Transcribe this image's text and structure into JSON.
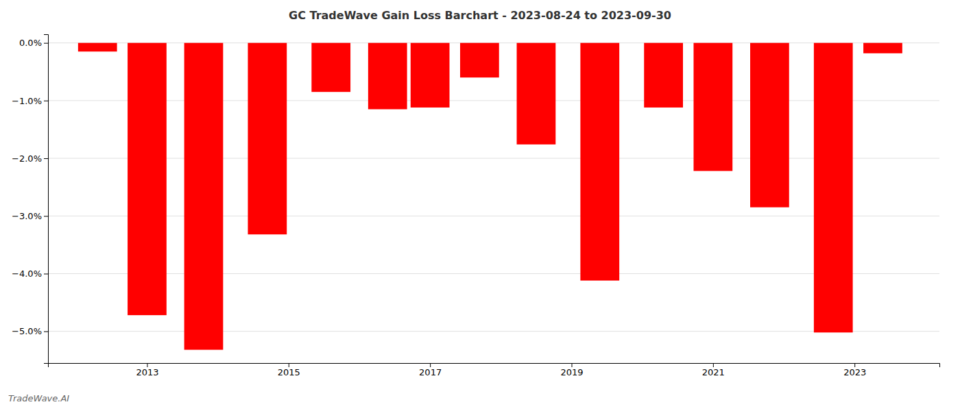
{
  "chart_data": {
    "type": "bar",
    "title": "GC TradeWave Gain Loss Barchart - 2023-08-24 to 2023-09-30",
    "annotations": [
      "TradeWave.AI"
    ],
    "x": [
      2012.3,
      2013.0,
      2013.8,
      2014.7,
      2015.6,
      2016.4,
      2017.0,
      2017.7,
      2018.5,
      2019.4,
      2020.3,
      2021.0,
      2021.8,
      2022.7,
      2023.4
    ],
    "values": [
      -0.15,
      -4.72,
      -5.32,
      -3.32,
      -0.85,
      -1.15,
      -1.12,
      -0.6,
      -1.76,
      -4.12,
      -1.12,
      -2.22,
      -2.85,
      -5.02,
      -0.18
    ],
    "color": "#FF0000",
    "xlim": [
      2011.6,
      2024.2
    ],
    "xticks": [
      2013,
      2015,
      2017,
      2019,
      2021,
      2023
    ],
    "ylim": [
      -5.55,
      0.15
    ],
    "yticks": [
      {
        "value": 0.0,
        "label": "0.0%"
      },
      {
        "value": -1.0,
        "label": "−1.0%"
      },
      {
        "value": -2.0,
        "label": "−2.0%"
      },
      {
        "value": -3.0,
        "label": "−3.0%"
      },
      {
        "value": -4.0,
        "label": "−4.0%"
      },
      {
        "value": -5.0,
        "label": "−5.0%"
      }
    ],
    "grid": true
  }
}
